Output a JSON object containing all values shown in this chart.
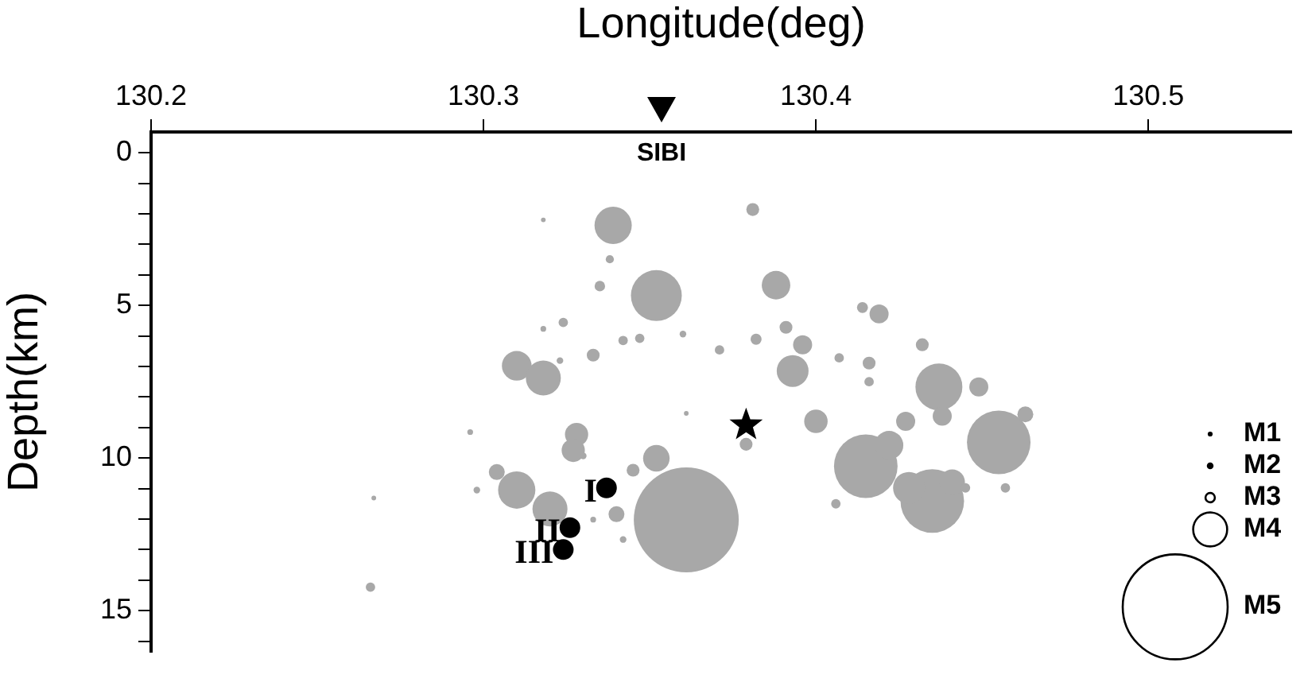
{
  "chart_data": {
    "type": "bubble",
    "xlabel": "Longitude(deg)",
    "ylabel": "Depth(km)",
    "xlim": [
      130.2,
      130.543
    ],
    "xticks": [
      130.2,
      130.3,
      130.4,
      130.5
    ],
    "ylim": [
      16.35,
      -0.68
    ],
    "yticks": [
      0,
      {
        "value": 1,
        "label": null
      },
      {
        "value": 2,
        "label": null
      },
      {
        "value": 3,
        "label": null
      },
      {
        "value": 4,
        "label": null
      },
      5,
      {
        "value": 6,
        "label": null
      },
      {
        "value": 7,
        "label": null
      },
      {
        "value": 8,
        "label": null
      },
      {
        "value": 9,
        "label": null
      },
      10,
      {
        "value": 11,
        "label": null
      },
      {
        "value": 12,
        "label": null
      },
      {
        "value": 13,
        "label": null
      },
      {
        "value": 14,
        "label": null
      },
      15,
      {
        "value": 16,
        "label": null
      }
    ],
    "grid": false,
    "size_legend": [
      {
        "value": 0.0006,
        "label": "M1"
      },
      {
        "value": 0.002,
        "label": "M2"
      },
      {
        "value": 0.008,
        "label": "M3"
      },
      {
        "value": 0.105,
        "label": "M4"
      },
      {
        "value": 1,
        "label": "M5"
      }
    ],
    "annotations": [
      "SIBI",
      {
        "text": "I",
        "x": 130.337,
        "y": 10.98
      },
      {
        "text": "II",
        "x": 130.326,
        "y": 12.28
      },
      {
        "text": "III",
        "x": 130.324,
        "y": 13.0
      }
    ],
    "series": [
      {
        "color": "#a8a8a8",
        "x": [
          130.361,
          130.339,
          130.352,
          130.31,
          130.318,
          130.328,
          130.327,
          130.352,
          130.31,
          130.32,
          130.304,
          130.34,
          130.345,
          130.333,
          130.324,
          130.335,
          130.338,
          130.342,
          130.347,
          130.266,
          130.342,
          130.318,
          130.298,
          130.296,
          130.323,
          130.318,
          130.33,
          130.36,
          130.267,
          130.361,
          130.333,
          130.381,
          130.388,
          130.391,
          130.396,
          130.393,
          130.382,
          130.419,
          130.414,
          130.416,
          130.407,
          130.416,
          130.4,
          130.379,
          130.432,
          130.437,
          130.449,
          130.438,
          130.455,
          130.463,
          130.415,
          130.422,
          130.427,
          130.435,
          130.428,
          130.441,
          130.406,
          130.457,
          130.445,
          130.371
        ],
        "values": [
          12.03,
          2.38,
          4.68,
          6.98,
          7.38,
          9.23,
          9.75,
          10.01,
          11.05,
          11.67,
          10.46,
          11.84,
          10.4,
          6.63,
          5.56,
          4.37,
          3.49,
          6.15,
          6.08,
          14.23,
          12.67,
          2.2,
          11.05,
          9.15,
          6.81,
          5.77,
          9.93,
          5.94,
          11.31,
          8.54,
          12.02,
          1.86,
          4.34,
          5.72,
          6.29,
          7.15,
          6.11,
          5.28,
          5.07,
          6.89,
          6.72,
          7.5,
          8.8,
          9.55,
          6.29,
          7.67,
          7.67,
          8.63,
          9.49,
          8.57,
          10.27,
          9.58,
          8.8,
          11.41,
          10.98,
          10.79,
          11.5,
          10.98,
          10.98,
          6.46
        ],
        "sizes": [
          1,
          0.126,
          0.235,
          0.08,
          0.111,
          0.049,
          0.049,
          0.064,
          0.126,
          0.111,
          0.023,
          0.023,
          0.015,
          0.015,
          0.008,
          0.01,
          0.006,
          0.008,
          0.008,
          0.008,
          0.004,
          0.002,
          0.004,
          0.003,
          0.004,
          0.003,
          0.004,
          0.004,
          0.002,
          0.002,
          0.003,
          0.015,
          0.074,
          0.015,
          0.033,
          0.092,
          0.011,
          0.033,
          0.011,
          0.015,
          0.008,
          0.008,
          0.05,
          0.015,
          0.015,
          0.2,
          0.033,
          0.033,
          0.367,
          0.023,
          0.367,
          0.074,
          0.033,
          0.367,
          0.092,
          0.059,
          0.008,
          0.008,
          0.008,
          0.008
        ]
      },
      {
        "type": "scatter",
        "color": "#000000",
        "marker": "star",
        "x": [
          130.379
        ],
        "values": [
          8.92
        ]
      },
      {
        "type": "scatter",
        "color": "#000000",
        "marker": "circle",
        "x": [
          130.337,
          130.326,
          130.324
        ],
        "values": [
          10.98,
          12.28,
          13.0
        ]
      }
    ]
  }
}
